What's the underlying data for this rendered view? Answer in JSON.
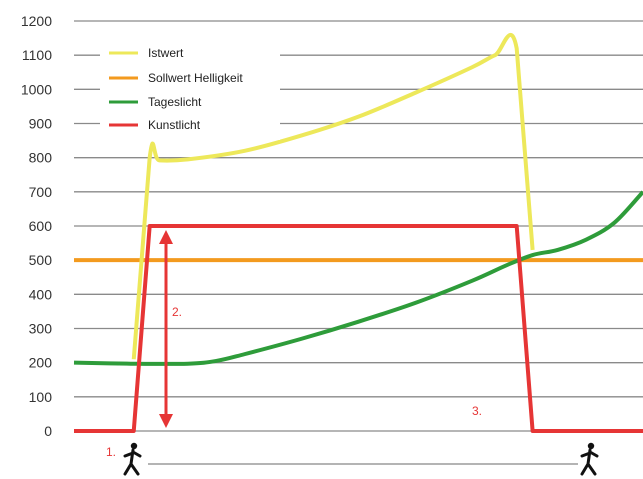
{
  "chart_data": {
    "type": "line",
    "title": "",
    "xlabel": "",
    "ylabel": "",
    "ylim": [
      0,
      1200
    ],
    "yticks": [
      0,
      100,
      200,
      300,
      400,
      500,
      600,
      700,
      800,
      900,
      1000,
      1100,
      1200
    ],
    "grid": "horizontal",
    "legend_position": "top-left",
    "x_range": [
      0,
      100
    ],
    "series": [
      {
        "name": "Istwert",
        "color": "#ede85a",
        "x": [
          10.5,
          13.3,
          15,
          20,
          30,
          40,
          50,
          60,
          70,
          74,
          77.8,
          80.6
        ],
        "values": [
          210,
          800,
          792,
          795,
          820,
          865,
          920,
          990,
          1065,
          1100,
          1120,
          530
        ]
      },
      {
        "name": "Sollwert Helligkeit",
        "color": "#f39a1e",
        "x": [
          0,
          100
        ],
        "values": [
          500,
          500
        ]
      },
      {
        "name": "Tageslicht",
        "color": "#2e9c3a",
        "x": [
          0,
          10,
          20,
          25,
          30,
          40,
          50,
          60,
          70,
          76,
          80.6,
          85,
          90,
          95,
          100
        ],
        "values": [
          200,
          197,
          197,
          205,
          225,
          270,
          320,
          375,
          440,
          485,
          515,
          530,
          560,
          610,
          700
        ]
      },
      {
        "name": "Kunstlicht",
        "color": "#e63535",
        "x": [
          0,
          10.5,
          13.3,
          77.8,
          80.6,
          100
        ],
        "values": [
          0,
          0,
          600,
          600,
          0,
          0
        ]
      }
    ],
    "annotations": [
      {
        "label": "1.",
        "color": "#e63535"
      },
      {
        "label": "2.",
        "color": "#e63535"
      },
      {
        "label": "3.",
        "color": "#e63535"
      }
    ]
  }
}
